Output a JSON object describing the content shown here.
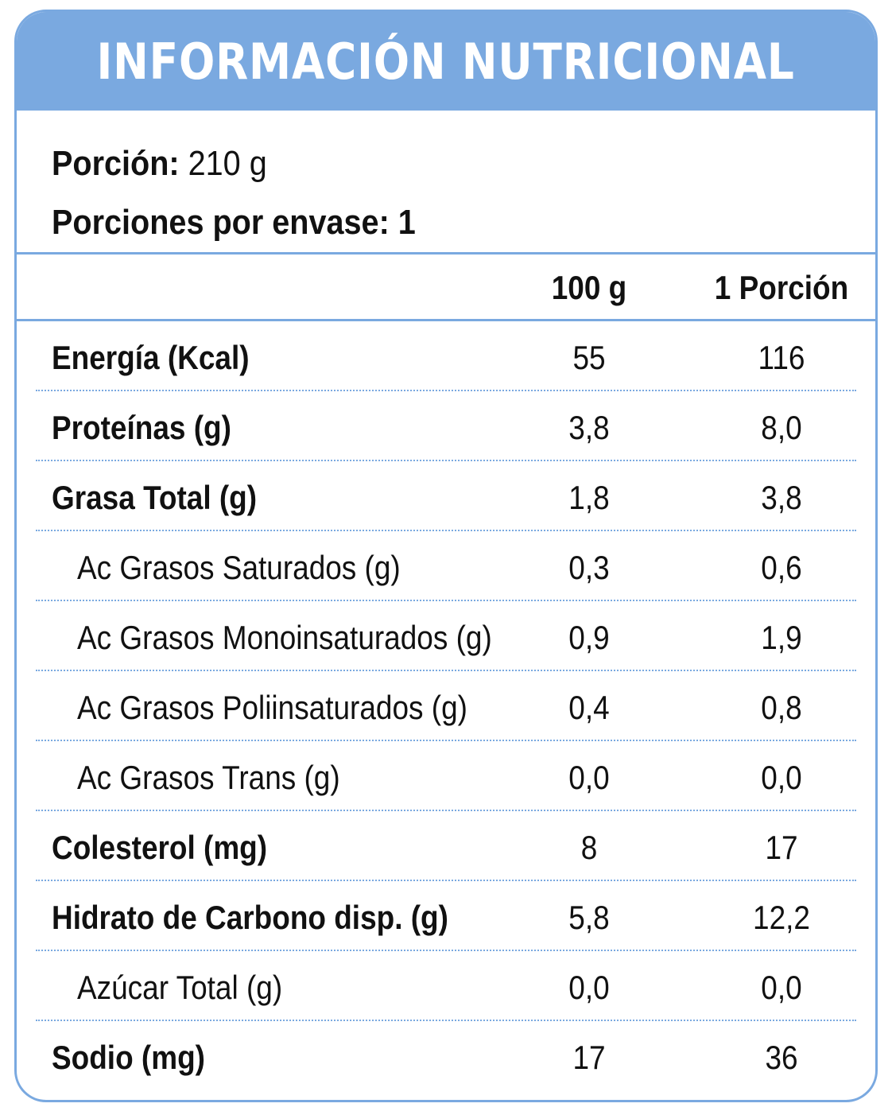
{
  "title": "INFORMACIÓN NUTRICIONAL",
  "serving": {
    "portion_label": "Porción:",
    "portion_value": "210 g",
    "per_pack_label": "Porciones por envase:",
    "per_pack_value": "1"
  },
  "columns": {
    "per_100g": "100 g",
    "per_portion": "1 Porción"
  },
  "rows": [
    {
      "name": "Energía (Kcal)",
      "per_100g": "55",
      "per_portion": "116"
    },
    {
      "name": "Proteínas (g)",
      "per_100g": "3,8",
      "per_portion": "8,0"
    },
    {
      "name": "Grasa Total (g)",
      "per_100g": "1,8",
      "per_portion": "3,8"
    },
    {
      "name": "Ac Grasos Saturados (g)",
      "per_100g": "0,3",
      "per_portion": "0,6"
    },
    {
      "name": "Ac Grasos Monoinsaturados (g)",
      "per_100g": "0,9",
      "per_portion": "1,9"
    },
    {
      "name": "Ac Grasos Poliinsaturados (g)",
      "per_100g": "0,4",
      "per_portion": "0,8"
    },
    {
      "name": "Ac Grasos Trans (g)",
      "per_100g": "0,0",
      "per_portion": "0,0"
    },
    {
      "name": "Colesterol (mg)",
      "per_100g": "8",
      "per_portion": "17"
    },
    {
      "name": "Hidrato de Carbono disp. (g)",
      "per_100g": "5,8",
      "per_portion": "12,2"
    },
    {
      "name": "Azúcar Total (g)",
      "per_100g": "0,0",
      "per_portion": "0,0"
    },
    {
      "name": "Sodio (mg)",
      "per_100g": "17",
      "per_portion": "36"
    }
  ],
  "colors": {
    "accent": "#7aa9e0",
    "text": "#111111",
    "title_text": "#ffffff"
  }
}
